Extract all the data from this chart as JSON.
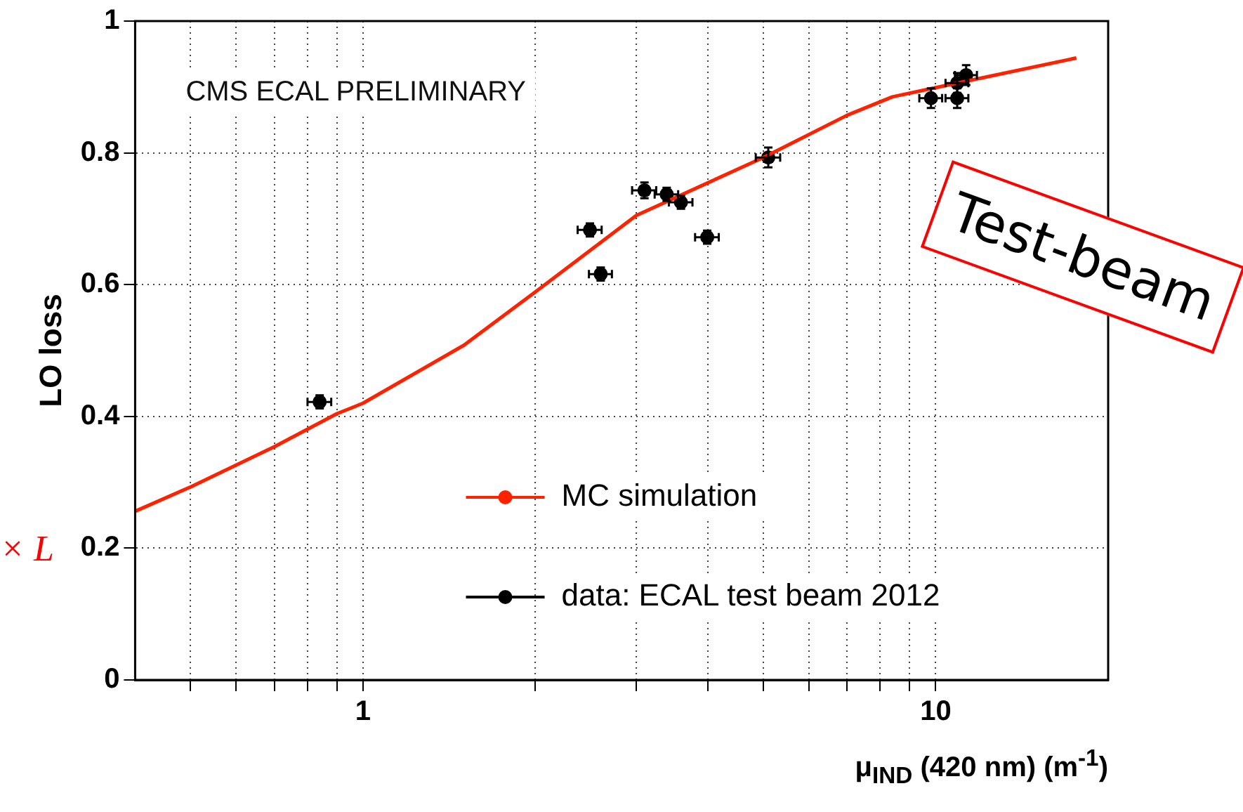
{
  "chart_data": {
    "type": "scatter",
    "ylabel": "LO loss",
    "xlabel": "μ$_{IND}$ (420 nm) (m$^{-1}$)",
    "annotations": [
      "CMS ECAL PRELIMINARY",
      "Test-beam",
      "× L"
    ],
    "log": "x",
    "xlim": [
      0.4,
      20
    ],
    "xticks": [
      {
        "value": 0.5,
        "label": null
      },
      {
        "value": 0.6,
        "label": null
      },
      {
        "value": 0.7,
        "label": null
      },
      {
        "value": 0.8,
        "label": null
      },
      {
        "value": 0.9,
        "label": null
      },
      1,
      {
        "value": 2,
        "label": null
      },
      {
        "value": 3,
        "label": null
      },
      {
        "value": 4,
        "label": null
      },
      {
        "value": 5,
        "label": null
      },
      {
        "value": 6,
        "label": null
      },
      {
        "value": 7,
        "label": null
      },
      {
        "value": 8,
        "label": null
      },
      {
        "value": 9,
        "label": null
      },
      10
    ],
    "ylim": [
      0,
      1
    ],
    "yticks": [
      0,
      0.2,
      0.4,
      0.6,
      0.8,
      1
    ],
    "grid": true,
    "legend": "bottom",
    "series": [
      {
        "name": "MC simulation",
        "type": "line",
        "color": "#ff2200",
        "marker": "none",
        "x": [
          0.4,
          0.5,
          0.7,
          0.9,
          1,
          1.5,
          2,
          3,
          5,
          7,
          8.4,
          10,
          17.6
        ],
        "values": [
          0.256,
          0.293,
          0.354,
          0.404,
          0.42,
          0.508,
          0.589,
          0.705,
          0.793,
          0.857,
          0.885,
          0.899,
          0.944
        ]
      },
      {
        "name": "data: ECAL test beam 2012",
        "color": "#000000",
        "marker": "circle",
        "x": [
          0.84,
          2.49,
          2.6,
          3.1,
          3.39,
          3.59,
          3.99,
          5.1,
          9.81,
          10.9,
          10.9,
          11.3
        ],
        "values": [
          0.422,
          0.683,
          0.616,
          0.743,
          0.737,
          0.725,
          0.672,
          0.793,
          0.883,
          0.883,
          0.906,
          0.918
        ],
        "errors": [
          0.01,
          0.01,
          0.01,
          0.012,
          0.01,
          0.01,
          0.01,
          0.015,
          0.015,
          0.015,
          0.015,
          0.015
        ],
        "xerrors": [
          0.04,
          0.12,
          0.12,
          0.15,
          0.16,
          0.17,
          0.19,
          0.25,
          0.45,
          0.5,
          0.5,
          0.5
        ]
      }
    ]
  }
}
